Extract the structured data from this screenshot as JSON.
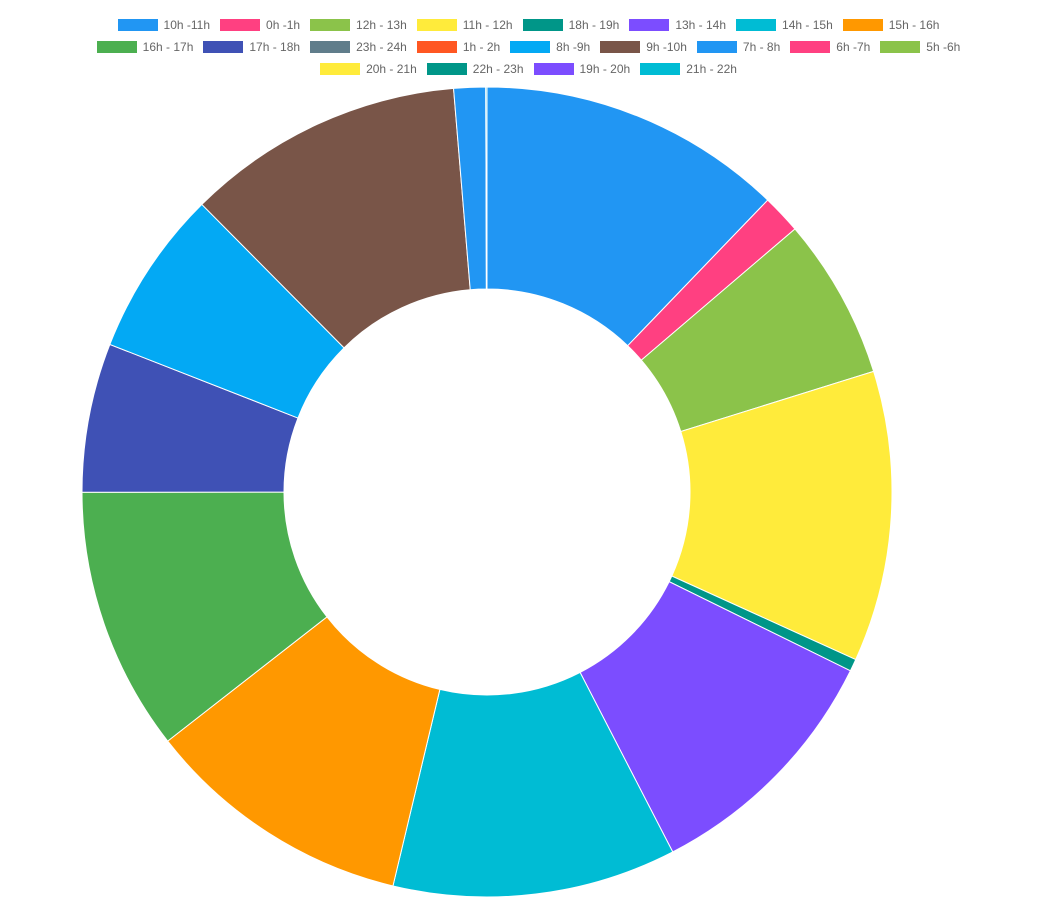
{
  "chart_data": {
    "type": "doughnut",
    "legend_position": "top",
    "labels": [
      "10h -11h",
      "0h -1h",
      "12h - 13h",
      "11h - 12h",
      "18h - 19h",
      "13h - 14h",
      "14h - 15h",
      "15h - 16h",
      "16h - 17h",
      "17h - 18h",
      "23h - 24h",
      "1h - 2h",
      "8h -9h",
      "9h -10h",
      "7h - 8h",
      "6h -7h",
      "5h -6h",
      "20h - 21h",
      "22h - 23h",
      "19h - 20h",
      "21h - 22h"
    ],
    "colors": [
      "#2196F3",
      "#FF4081",
      "#8BC34A",
      "#FFEB3B",
      "#009688",
      "#7C4DFF",
      "#00BCD4",
      "#FF9800",
      "#4CAF50",
      "#3F51B5",
      "#607D8B",
      "#FF5722",
      "#03A9F4",
      "#795548",
      "#2196F3",
      "#FF4081",
      "#8BC34A",
      "#FFEB3B",
      "#009688",
      "#7C4DFF",
      "#00BCD4"
    ],
    "values": [
      12.5,
      1.6,
      6.6,
      11.9,
      0.5,
      10.4,
      11.6,
      11.0,
      10.8,
      6.1,
      0,
      0,
      6.8,
      11.4,
      1.3,
      0,
      0,
      0,
      0,
      0,
      0.05
    ]
  }
}
